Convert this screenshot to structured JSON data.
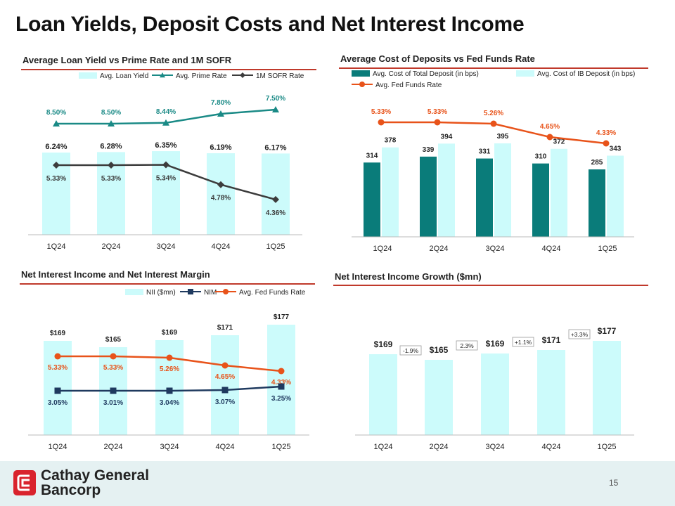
{
  "page_title": "Loan Yields, Deposit Costs and Net Interest Income",
  "page_number": "15",
  "logo": {
    "line1": "Cathay General",
    "line2": "Bancorp"
  },
  "colors": {
    "light_cyan": "#ccfbfb",
    "teal": "#0a7c7a",
    "teal_line": "#1a8a86",
    "dark_gray": "#3c3c3c",
    "orange": "#e8531a",
    "navy": "#1f3a5f",
    "red_rule": "#c0392b"
  },
  "chart_data": [
    {
      "id": "loan_yield",
      "type": "bar",
      "title": "Average Loan Yield vs Prime Rate and 1M SOFR",
      "categories": [
        "1Q24",
        "2Q24",
        "3Q24",
        "4Q24",
        "1Q25"
      ],
      "series": [
        {
          "name": "Avg. Loan Yield",
          "kind": "bar",
          "values": [
            6.24,
            6.28,
            6.35,
            6.19,
            6.17
          ],
          "labels": [
            "6.24%",
            "6.28%",
            "6.35%",
            "6.19%",
            "6.17%"
          ]
        },
        {
          "name": "Avg. Prime Rate",
          "kind": "line",
          "values": [
            8.5,
            8.5,
            8.44,
            7.8,
            7.5
          ],
          "labels": [
            "8.50%",
            "8.50%",
            "8.44%",
            "7.80%",
            "7.50%"
          ]
        },
        {
          "name": "1M SOFR Rate",
          "kind": "line",
          "values": [
            5.33,
            5.33,
            5.34,
            4.78,
            4.36
          ],
          "labels": [
            "5.33%",
            "5.33%",
            "5.34%",
            "4.78%",
            "4.36%"
          ]
        }
      ],
      "legend": [
        "Avg. Loan Yield",
        "Avg. Prime Rate",
        "1M SOFR Rate"
      ]
    },
    {
      "id": "deposit_cost",
      "type": "bar",
      "title": "Average Cost of Deposits vs Fed Funds Rate",
      "categories": [
        "1Q24",
        "2Q24",
        "3Q24",
        "4Q24",
        "1Q25"
      ],
      "series": [
        {
          "name": "Avg. Cost of Total Deposit (in bps)",
          "kind": "bar",
          "values": [
            314,
            339,
            331,
            310,
            285
          ],
          "labels": [
            "314",
            "339",
            "331",
            "310",
            "285"
          ]
        },
        {
          "name": "Avg. Cost of IB Deposit (in bps)",
          "kind": "bar",
          "values": [
            378,
            394,
            395,
            372,
            343
          ],
          "labels": [
            "378",
            "394",
            "395",
            "372",
            "343"
          ]
        },
        {
          "name": "Avg. Fed Funds Rate",
          "kind": "line",
          "values": [
            5.33,
            5.33,
            5.26,
            4.65,
            4.33
          ],
          "labels": [
            "5.33%",
            "5.33%",
            "5.26%",
            "4.65%",
            "4.33%"
          ]
        }
      ],
      "legend": [
        "Avg. Cost of Total Deposit (in bps)",
        "Avg. Cost of IB Deposit (in bps)",
        "Avg. Fed Funds Rate"
      ]
    },
    {
      "id": "nii_nim",
      "type": "bar",
      "title": "Net Interest Income and Net Interest Margin",
      "categories": [
        "1Q24",
        "2Q24",
        "3Q24",
        "4Q24",
        "1Q25"
      ],
      "series": [
        {
          "name": "NII ($mn)",
          "kind": "bar",
          "values": [
            169,
            165,
            169,
            171,
            177
          ],
          "labels": [
            "$169",
            "$165",
            "$169",
            "$171",
            "$177"
          ]
        },
        {
          "name": "NIM",
          "kind": "line",
          "values": [
            3.05,
            3.01,
            3.04,
            3.07,
            3.25
          ],
          "labels": [
            "3.05%",
            "3.01%",
            "3.04%",
            "3.07%",
            "3.25%"
          ]
        },
        {
          "name": "Avg. Fed Funds Rate",
          "kind": "line",
          "values": [
            5.33,
            5.33,
            5.26,
            4.65,
            4.33
          ],
          "labels": [
            "5.33%",
            "5.33%",
            "5.26%",
            "4.65%",
            "4.33%"
          ]
        }
      ],
      "legend": [
        "NII ($mn)",
        "NIM",
        "Avg. Fed Funds Rate"
      ]
    },
    {
      "id": "nii_growth",
      "type": "bar",
      "title": "Net Interest Income Growth ($mn)",
      "categories": [
        "1Q24",
        "2Q24",
        "3Q24",
        "4Q24",
        "1Q25"
      ],
      "series": [
        {
          "name": "NII ($mn)",
          "kind": "bar",
          "values": [
            169,
            165,
            169,
            171,
            177
          ],
          "labels": [
            "$169",
            "$165",
            "$169",
            "$171",
            "$177"
          ]
        }
      ],
      "annotations": [
        "-1.9%",
        "2.3%",
        "+1.1%",
        "+3.3%"
      ]
    }
  ]
}
